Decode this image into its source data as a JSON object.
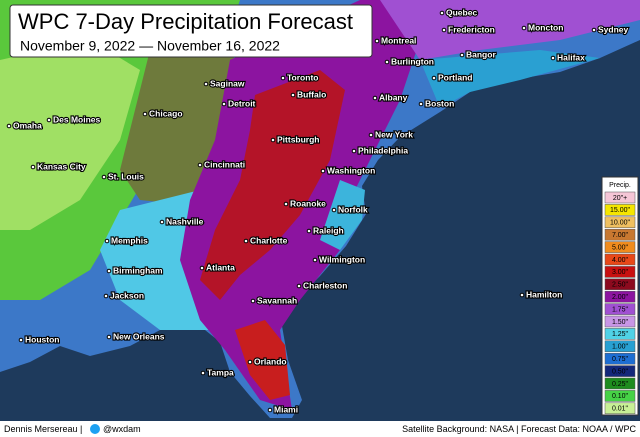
{
  "header": {
    "title": "WPC 7-Day Precipitation Forecast",
    "subtitle": "November 9, 2022 — November 16, 2022"
  },
  "cities": [
    "Quebec",
    "Montreal",
    "Fredericton",
    "Moncton",
    "Sydney",
    "Halifax",
    "Burlington",
    "Bangor",
    "Portland",
    "Toronto",
    "Saginaw",
    "Detroit",
    "Buffalo",
    "Albany",
    "Boston",
    "Omaha",
    "Des Moines",
    "Chicago",
    "New York",
    "Pittsburgh",
    "Philadelphia",
    "Kansas City",
    "Cincinnati",
    "St. Louis",
    "Washington",
    "Nashville",
    "Roanoke",
    "Norfolk",
    "Memphis",
    "Raleigh",
    "Charlotte",
    "Wilmington",
    "Birmingham",
    "Atlanta",
    "Hamilton",
    "Charleston",
    "Jackson",
    "Savannah",
    "Houston",
    "New Orleans",
    "Orlando",
    "Tampa",
    "Miami"
  ],
  "legend": {
    "title": "Precip.",
    "items": [
      {
        "label": "20\"+",
        "color": "#f5c6d6"
      },
      {
        "label": "15.00\"",
        "color": "#f5e600"
      },
      {
        "label": "10.00\"",
        "color": "#f0c060"
      },
      {
        "label": "7.00\"",
        "color": "#c87830"
      },
      {
        "label": "5.00\"",
        "color": "#f08c1e"
      },
      {
        "label": "4.00\"",
        "color": "#e84818"
      },
      {
        "label": "3.00\"",
        "color": "#c81010"
      },
      {
        "label": "2.50\"",
        "color": "#8c0a1e"
      },
      {
        "label": "2.00\"",
        "color": "#8c14a0"
      },
      {
        "label": "1.75\"",
        "color": "#a050d2"
      },
      {
        "label": "1.50\"",
        "color": "#c896e6"
      },
      {
        "label": "1.25\"",
        "color": "#50d2e6"
      },
      {
        "label": "1.00\"",
        "color": "#28a0d2"
      },
      {
        "label": "0.75\"",
        "color": "#1e6ed2"
      },
      {
        "label": "0.50\"",
        "color": "#14287a"
      },
      {
        "label": "0.25\"",
        "color": "#1e8c1e"
      },
      {
        "label": "0.10\"",
        "color": "#46d246"
      },
      {
        "label": "0.01\"",
        "color": "#c8f096"
      }
    ]
  },
  "footer": {
    "author": "Dennis Mersereau |",
    "handle": "@wxdam",
    "credits": "Satellite Background: NASA | Forecast Data: NOAA / WPC"
  }
}
